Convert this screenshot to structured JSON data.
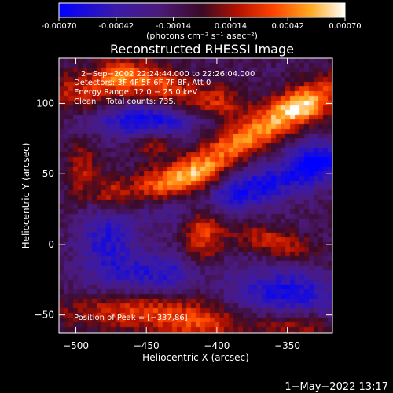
{
  "colorbar": {
    "ticks": [
      "-0.00070",
      "-0.00042",
      "-0.00014",
      "0.00014",
      "0.00042",
      "0.00070"
    ],
    "unit_label": "(photons cm⁻² s⁻¹ asec⁻²)"
  },
  "chart_data": {
    "type": "heatmap",
    "title": "Reconstructed RHESSI Image",
    "xlabel": "Heliocentric X (arcsec)",
    "ylabel": "Heliocentric Y (arcsec)",
    "xlim": [
      -512,
      -318
    ],
    "ylim": [
      -63,
      132
    ],
    "x_ticks": [
      -500,
      -450,
      -400,
      -350
    ],
    "y_ticks": [
      -50,
      0,
      50,
      100
    ],
    "x_tick_labels": [
      "−500",
      "−450",
      "−400",
      "−350"
    ],
    "y_tick_labels": [
      "−50",
      "0",
      "50",
      "100"
    ],
    "colorbar_range": [
      -0.0007,
      0.0007
    ],
    "peak": [
      -337,
      86
    ],
    "annotations": [
      "2−Sep−2002 22:24:44.000 to 22:26:04.000",
      "Detectors: 3F 4F 5F 6F 7F 8F, Att 0",
      "Energy Range: 12.0 − 25.0 keV",
      "Clean    Total counts: 735.",
      "Position of Peak = [−337,86]"
    ],
    "features": [
      {
        "x": -368,
        "y": 82,
        "sx": 50,
        "sy": 9,
        "angle": 30,
        "amp": 0.00062
      },
      {
        "x": -340,
        "y": 98,
        "sx": 14,
        "sy": 9,
        "angle": 0,
        "amp": 0.0003
      },
      {
        "x": -495,
        "y": 108,
        "sx": 22,
        "sy": 10,
        "angle": 0,
        "amp": 0.00035
      },
      {
        "x": -470,
        "y": 120,
        "sx": 12,
        "sy": 8,
        "angle": 0,
        "amp": 0.00035
      },
      {
        "x": -440,
        "y": 112,
        "sx": 20,
        "sy": 10,
        "angle": -20,
        "amp": 0.00045
      },
      {
        "x": -398,
        "y": 100,
        "sx": 14,
        "sy": 9,
        "angle": 0,
        "amp": 0.00035
      },
      {
        "x": -445,
        "y": 72,
        "sx": 10,
        "sy": 8,
        "angle": 0,
        "amp": 0.0003
      },
      {
        "x": -430,
        "y": 45,
        "sx": 24,
        "sy": 8,
        "angle": 10,
        "amp": 0.00045
      },
      {
        "x": -410,
        "y": 10,
        "sx": 10,
        "sy": 24,
        "angle": 0,
        "amp": 0.00042
      },
      {
        "x": -495,
        "y": 52,
        "sx": 8,
        "sy": 16,
        "angle": 0,
        "amp": 0.0003
      },
      {
        "x": -475,
        "y": 35,
        "sx": 9,
        "sy": 9,
        "angle": 0,
        "amp": 0.0003
      },
      {
        "x": -360,
        "y": 2,
        "sx": 22,
        "sy": 7,
        "angle": -15,
        "amp": 0.00035
      },
      {
        "x": -455,
        "y": -48,
        "sx": 40,
        "sy": 9,
        "angle": 0,
        "amp": 0.0004
      },
      {
        "x": -408,
        "y": -58,
        "sx": 22,
        "sy": 8,
        "angle": 0,
        "amp": 0.0003
      },
      {
        "x": -345,
        "y": -57,
        "sx": 18,
        "sy": 8,
        "angle": 0,
        "amp": 0.0003
      },
      {
        "x": -450,
        "y": 88,
        "sx": 26,
        "sy": 9,
        "angle": 0,
        "amp": -0.00055
      },
      {
        "x": -375,
        "y": 40,
        "sx": 44,
        "sy": 10,
        "angle": 15,
        "amp": -0.0005
      },
      {
        "x": -350,
        "y": -35,
        "sx": 26,
        "sy": 12,
        "angle": 0,
        "amp": -0.0005
      },
      {
        "x": -440,
        "y": -20,
        "sx": 30,
        "sy": 10,
        "angle": 0,
        "amp": -0.0004
      },
      {
        "x": -478,
        "y": 5,
        "sx": 14,
        "sy": 18,
        "angle": 0,
        "amp": -0.0004
      },
      {
        "x": -330,
        "y": 60,
        "sx": 12,
        "sy": 10,
        "angle": 0,
        "amp": -0.0004
      }
    ]
  },
  "footer": {
    "timestamp": "1−May−2022 13:17"
  }
}
